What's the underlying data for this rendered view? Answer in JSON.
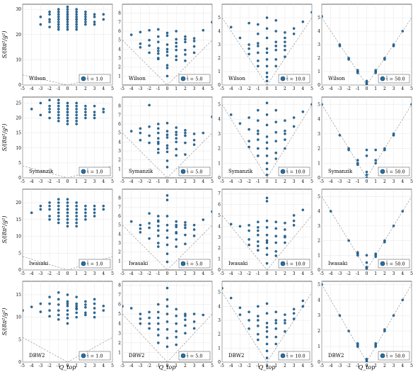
{
  "figure": {
    "xlabel": "Q_top",
    "xticks": [
      -5,
      -4,
      -3,
      -2,
      -1,
      0,
      1,
      2,
      3,
      4,
      5
    ],
    "row_ylabels": [
      "S/(8π²/g²)",
      "S/(8π²/g²)",
      "S/(8π²/g²)",
      "S/(8π²/g²)"
    ],
    "legend_prefix": "t̄ = ",
    "colors": {
      "point": "#2a6fa1",
      "point_edge": "#0d3c61",
      "guide": "#8a8a8a",
      "grid": "#e6e6e6"
    }
  },
  "chart_data": [
    {
      "type": "scatter",
      "action": "Wilson",
      "flow": "1.0",
      "row": 0,
      "col": 0,
      "ylim": [
        0,
        32
      ],
      "yticks": [
        0,
        10,
        20,
        30
      ],
      "kink": 0,
      "slope": 0.8,
      "x": [
        -3,
        -3,
        -2,
        -2,
        -2,
        -2,
        -2,
        -1,
        -1,
        -1,
        -1,
        -1,
        -1,
        -1,
        -1,
        -1,
        0,
        0,
        0,
        0,
        0,
        0,
        0,
        0,
        0,
        0,
        0,
        0,
        1,
        1,
        1,
        1,
        1,
        1,
        1,
        1,
        1,
        1,
        2,
        2,
        2,
        2,
        2,
        2,
        3,
        3,
        3,
        3,
        4,
        4
      ],
      "y": [
        27,
        24,
        29,
        26,
        28,
        25,
        23,
        30,
        27,
        25,
        28,
        24,
        26,
        29,
        23,
        22,
        31,
        28,
        26,
        24,
        27,
        25,
        29,
        23,
        30,
        22,
        26,
        28,
        29,
        26,
        24,
        27,
        25,
        28,
        30,
        23,
        26,
        22,
        28,
        25,
        27,
        24,
        29,
        26,
        28,
        25,
        24,
        27,
        28,
        26
      ]
    },
    {
      "type": "scatter",
      "action": "Wilson",
      "flow": "5.0",
      "row": 0,
      "col": 1,
      "ylim": [
        0,
        9
      ],
      "yticks": [
        1,
        2,
        3,
        4,
        5,
        6,
        7,
        8
      ],
      "kink": 0,
      "slope": 1,
      "x": [
        -4,
        -3,
        -3,
        -3,
        -2,
        -2,
        -2,
        -2,
        -1,
        -1,
        -1,
        -1,
        -1,
        -1,
        -1,
        -1,
        0,
        0,
        0,
        0,
        0,
        0,
        0,
        0,
        0,
        1,
        1,
        1,
        1,
        1,
        1,
        1,
        2,
        2,
        2,
        2,
        2,
        2,
        3,
        3,
        3,
        3,
        4,
        5
      ],
      "y": [
        5.6,
        4.6,
        5.9,
        4.2,
        6.1,
        5.0,
        4.4,
        3.6,
        5.4,
        4.8,
        4.1,
        3.5,
        2.9,
        3.0,
        3.8,
        6.2,
        5.5,
        4.5,
        3.3,
        2.2,
        1.9,
        1.0,
        4.0,
        5.8,
        3.7,
        6.0,
        4.7,
        3.9,
        2.8,
        3.2,
        5.1,
        4.3,
        5.4,
        4.8,
        3.9,
        2.7,
        3.4,
        5.1,
        5.2,
        4.3,
        3.6,
        4.9,
        6.1,
        7.0
      ]
    },
    {
      "type": "scatter",
      "action": "Wilson",
      "flow": "10.0",
      "row": 0,
      "col": 2,
      "ylim": [
        0,
        6
      ],
      "yticks": [
        0,
        1,
        2,
        3,
        4,
        5
      ],
      "kink": 0,
      "slope": 1,
      "x": [
        -4,
        -3,
        -2,
        -2,
        -2,
        -2,
        -1,
        -1,
        -1,
        -1,
        -1,
        -1,
        -1,
        0,
        0,
        0,
        0,
        0,
        0,
        0,
        0,
        0,
        0,
        1,
        1,
        1,
        1,
        1,
        1,
        1,
        2,
        2,
        2,
        2,
        2,
        2,
        3,
        3,
        4,
        5
      ],
      "y": [
        4.3,
        3.5,
        4.6,
        3.0,
        2.3,
        2.7,
        4.5,
        3.8,
        3.1,
        2.4,
        1.8,
        1.4,
        2.9,
        5.0,
        4.2,
        3.5,
        2.7,
        1.9,
        1.4,
        0.9,
        0.6,
        0.3,
        2.4,
        4.8,
        4.0,
        3.2,
        2.6,
        1.9,
        1.4,
        2.9,
        3.9,
        3.2,
        2.6,
        2.1,
        2.9,
        3.5,
        3.8,
        4.2,
        4.7,
        5.4
      ]
    },
    {
      "type": "scatter",
      "action": "Wilson",
      "flow": "50.0",
      "row": 0,
      "col": 3,
      "ylim": [
        0,
        6
      ],
      "yticks": [
        0,
        1,
        2,
        3,
        4,
        5
      ],
      "kink": 0,
      "slope": 1,
      "x": [
        -5,
        -3,
        -3,
        -2,
        -2,
        -1,
        -1,
        -1,
        0,
        0,
        0,
        0,
        1,
        1,
        1,
        2,
        2,
        3,
        3,
        4
      ],
      "y": [
        5.1,
        3.0,
        2.9,
        2.0,
        1.9,
        1.0,
        1.1,
        0.9,
        0.0,
        0.1,
        0.2,
        0.3,
        1.0,
        1.1,
        0.9,
        2.0,
        1.9,
        2.9,
        3.0,
        4.0
      ]
    },
    {
      "type": "scatter",
      "action": "Symanzik",
      "flow": "1.0",
      "row": 1,
      "col": 0,
      "ylim": [
        0,
        27
      ],
      "yticks": [
        0,
        5,
        10,
        15,
        20,
        25
      ],
      "kink": 0,
      "slope": 0.8,
      "x": [
        -4,
        -3,
        -3,
        -2,
        -2,
        -2,
        -2,
        -2,
        -1,
        -1,
        -1,
        -1,
        -1,
        -1,
        -1,
        -1,
        0,
        0,
        0,
        0,
        0,
        0,
        0,
        0,
        0,
        0,
        1,
        1,
        1,
        1,
        1,
        1,
        1,
        1,
        2,
        2,
        2,
        2,
        2,
        3,
        3,
        3,
        3,
        4,
        4
      ],
      "y": [
        23,
        25,
        21,
        24,
        22,
        20,
        26,
        23,
        25,
        23,
        21,
        24,
        22,
        20,
        19,
        26,
        24,
        22,
        21,
        23,
        20,
        25,
        19,
        22,
        18,
        24,
        23,
        21,
        24,
        22,
        20,
        25,
        19,
        18,
        23,
        21,
        22,
        24,
        20,
        22,
        24,
        21,
        20,
        23,
        22
      ]
    },
    {
      "type": "scatter",
      "action": "Symanzik",
      "flow": "5.0",
      "row": 1,
      "col": 1,
      "ylim": [
        0,
        9
      ],
      "yticks": [
        1,
        2,
        3,
        4,
        5,
        6,
        7,
        8
      ],
      "kink": 0,
      "slope": 1,
      "x": [
        -4,
        -3,
        -3,
        -3,
        -2,
        -2,
        -2,
        -2,
        -1,
        -1,
        -1,
        -1,
        -1,
        -1,
        -1,
        -1,
        0,
        0,
        0,
        0,
        0,
        0,
        0,
        0,
        0,
        1,
        1,
        1,
        1,
        1,
        1,
        1,
        2,
        2,
        2,
        2,
        2,
        3,
        3,
        3,
        4,
        5
      ],
      "y": [
        5.2,
        5.5,
        5.0,
        4.2,
        8.1,
        5.7,
        4.7,
        3.9,
        6.0,
        5.0,
        4.4,
        3.8,
        3.2,
        2.8,
        4.0,
        5.5,
        6.1,
        5.2,
        4.5,
        3.6,
        2.9,
        1.9,
        1.2,
        4.8,
        3.3,
        5.6,
        4.8,
        4.0,
        3.2,
        2.5,
        5.1,
        4.4,
        5.3,
        4.7,
        3.9,
        2.6,
        5.0,
        4.2,
        4.9,
        3.7,
        5.0,
        6.8
      ]
    },
    {
      "type": "scatter",
      "action": "Symanzik",
      "flow": "10.0",
      "row": 1,
      "col": 2,
      "ylim": [
        0,
        5.5
      ],
      "yticks": [
        0,
        1,
        2,
        3,
        4,
        5
      ],
      "kink": 0,
      "slope": 1,
      "x": [
        -4,
        -3,
        -2,
        -2,
        -2,
        -2,
        -1,
        -1,
        -1,
        -1,
        -1,
        -1,
        -1,
        0,
        0,
        0,
        0,
        0,
        0,
        0,
        0,
        0,
        0,
        1,
        1,
        1,
        1,
        1,
        1,
        2,
        2,
        2,
        2,
        2,
        3,
        3,
        4,
        5
      ],
      "y": [
        4.3,
        3.7,
        4.1,
        3.3,
        2.5,
        2.1,
        4.6,
        3.9,
        3.2,
        2.6,
        2.0,
        1.5,
        3.0,
        5.1,
        4.3,
        3.6,
        2.8,
        2.0,
        1.5,
        1.0,
        0.6,
        0.2,
        2.4,
        4.6,
        3.8,
        3.1,
        2.5,
        1.7,
        1.3,
        3.9,
        3.2,
        2.6,
        2.0,
        3.0,
        3.5,
        4.1,
        4.5,
        5.0
      ]
    },
    {
      "type": "scatter",
      "action": "Symanzik",
      "flow": "50.0",
      "row": 1,
      "col": 3,
      "ylim": [
        0,
        5.5
      ],
      "yticks": [
        0,
        1,
        2,
        3,
        4,
        5
      ],
      "kink": 0,
      "slope": 1,
      "x": [
        -5,
        -3,
        -2,
        -2,
        -1,
        -1,
        -1,
        0,
        0,
        0,
        0,
        0,
        1,
        1,
        1,
        2,
        2,
        3,
        3,
        5
      ],
      "y": [
        5.0,
        2.9,
        1.9,
        2.0,
        1.0,
        1.2,
        0.9,
        0.0,
        0.2,
        0.4,
        1.5,
        1.9,
        1.0,
        1.2,
        1.9,
        1.9,
        2.0,
        2.9,
        3.0,
        5.0
      ]
    },
    {
      "type": "scatter",
      "action": "Iwasaki",
      "flow": "1.0",
      "row": 2,
      "col": 0,
      "ylim": [
        0,
        24
      ],
      "yticks": [
        0,
        5,
        10,
        15,
        20
      ],
      "kink": 0,
      "slope": 0.8,
      "x": [
        -4,
        -3,
        -3,
        -2,
        -2,
        -2,
        -2,
        -2,
        -1,
        -1,
        -1,
        -1,
        -1,
        -1,
        -1,
        -1,
        0,
        0,
        0,
        0,
        0,
        0,
        0,
        0,
        0,
        0,
        1,
        1,
        1,
        1,
        1,
        1,
        1,
        1,
        2,
        2,
        2,
        2,
        2,
        3,
        3,
        3,
        3,
        4,
        4
      ],
      "y": [
        17,
        19,
        18,
        20,
        18,
        16,
        15,
        19,
        21,
        19,
        17,
        16,
        15,
        14,
        18,
        20,
        21,
        19,
        18,
        17,
        16,
        15,
        14,
        13,
        20,
        18,
        19,
        17,
        16,
        15,
        14,
        13,
        18,
        20,
        19,
        17,
        16,
        15,
        18,
        19,
        17,
        16,
        18,
        18,
        19
      ]
    },
    {
      "type": "scatter",
      "action": "Iwasaki",
      "flow": "5.0",
      "row": 2,
      "col": 1,
      "ylim": [
        0,
        9
      ],
      "yticks": [
        1,
        2,
        3,
        4,
        5,
        6,
        7,
        8
      ],
      "kink": 0,
      "slope": 1,
      "x": [
        -4,
        -3,
        -3,
        -3,
        -2,
        -2,
        -2,
        -2,
        -1,
        -1,
        -1,
        -1,
        -1,
        -1,
        -1,
        -1,
        0,
        0,
        0,
        0,
        0,
        0,
        0,
        0,
        0,
        1,
        1,
        1,
        1,
        1,
        1,
        1,
        2,
        2,
        2,
        2,
        2,
        3,
        3,
        3,
        4,
        5
      ],
      "y": [
        5.4,
        5.0,
        4.6,
        4.2,
        6.3,
        5.2,
        4.7,
        3.5,
        6.0,
        5.4,
        4.4,
        3.8,
        3.0,
        2.6,
        4.9,
        5.5,
        8.3,
        7.8,
        6.0,
        5.0,
        4.4,
        3.6,
        2.8,
        1.8,
        0.9,
        5.4,
        4.8,
        4.1,
        3.4,
        2.6,
        5.0,
        4.2,
        5.3,
        4.7,
        3.9,
        2.9,
        5.0,
        4.5,
        5.0,
        3.8,
        5.6,
        6.5
      ]
    },
    {
      "type": "scatter",
      "action": "Iwasaki",
      "flow": "10.0",
      "row": 2,
      "col": 2,
      "ylim": [
        0,
        7.4
      ],
      "yticks": [
        0,
        1,
        2,
        3,
        4,
        5,
        6,
        7
      ],
      "kink": 0,
      "slope": 1,
      "x": [
        -4,
        -3,
        -2,
        -2,
        -2,
        -2,
        -1,
        -1,
        -1,
        -1,
        -1,
        -1,
        -1,
        0,
        0,
        0,
        0,
        0,
        0,
        0,
        0,
        0,
        0,
        1,
        1,
        1,
        1,
        1,
        1,
        2,
        2,
        2,
        2,
        2,
        3,
        3,
        3,
        4
      ],
      "y": [
        4.2,
        4.0,
        4.1,
        3.6,
        2.8,
        2.3,
        3.9,
        3.2,
        2.6,
        2.2,
        1.8,
        3.6,
        4.4,
        6.6,
        6.3,
        4.5,
        3.9,
        3.2,
        2.7,
        2.0,
        1.4,
        0.6,
        2.5,
        4.4,
        3.8,
        3.1,
        2.5,
        1.7,
        1.3,
        4.3,
        3.7,
        3.1,
        2.5,
        3.0,
        4.5,
        4.1,
        5.0,
        5.5
      ]
    },
    {
      "type": "scatter",
      "action": "Iwasaki",
      "flow": "50.0",
      "row": 2,
      "col": 3,
      "ylim": [
        0,
        5.5
      ],
      "yticks": [
        0,
        1,
        2,
        3,
        4,
        5
      ],
      "kink": 0,
      "slope": 1,
      "x": [
        -4,
        -2,
        -1,
        -1,
        -1,
        0,
        0,
        0,
        0,
        1,
        1,
        1,
        2,
        2,
        3,
        4
      ],
      "y": [
        4.0,
        2.0,
        1.1,
        1.0,
        1.2,
        0.1,
        0.2,
        1.0,
        0.5,
        1.1,
        1.0,
        0.9,
        2.0,
        1.9,
        3.0,
        4.0
      ]
    },
    {
      "type": "scatter",
      "action": "DBW2",
      "flow": "1.0",
      "row": 3,
      "col": 0,
      "ylim": [
        0,
        18
      ],
      "yticks": [
        0,
        5,
        10,
        15
      ],
      "kink": 0,
      "slope": 1.1,
      "x": [
        -5,
        -4,
        -3,
        -3,
        -2,
        -2,
        -2,
        -2,
        -1,
        -1,
        -1,
        -1,
        -1,
        -1,
        0,
        0,
        0,
        0,
        0,
        0,
        0,
        0,
        1,
        1,
        1,
        1,
        1,
        1,
        1,
        2,
        2,
        2,
        2,
        2,
        3,
        3,
        3,
        3,
        3,
        4,
        4
      ],
      "y": [
        11.5,
        12.3,
        13.0,
        11.2,
        14.5,
        13.0,
        11.5,
        10.2,
        15.5,
        14.0,
        12.8,
        11.5,
        10.5,
        9.5,
        15.0,
        13.5,
        12.5,
        11.5,
        10.6,
        9.8,
        8.6,
        13.0,
        14.5,
        13.0,
        12.0,
        11.0,
        10.0,
        12.5,
        11.8,
        13.5,
        12.2,
        11.0,
        10.5,
        12.8,
        14.0,
        13.0,
        12.0,
        11.0,
        10.0,
        12.5,
        11.5
      ]
    },
    {
      "type": "scatter",
      "action": "DBW2",
      "flow": "5.0",
      "row": 3,
      "col": 1,
      "ylim": [
        0,
        8.4
      ],
      "yticks": [
        1,
        2,
        3,
        4,
        5,
        6,
        7,
        8
      ],
      "kink": 0,
      "slope": 1,
      "x": [
        -5,
        -4,
        -3,
        -3,
        -3,
        -2,
        -2,
        -2,
        -2,
        -1,
        -1,
        -1,
        -1,
        -1,
        -1,
        -1,
        0,
        0,
        0,
        0,
        0,
        0,
        0,
        0,
        1,
        1,
        1,
        1,
        1,
        1,
        2,
        2,
        2,
        2,
        2,
        3,
        3,
        3,
        4
      ],
      "y": [
        5.8,
        5.6,
        5.0,
        4.5,
        4.0,
        5.2,
        4.6,
        4.0,
        3.5,
        6.0,
        5.2,
        4.6,
        4.0,
        3.4,
        2.8,
        2.0,
        6.5,
        5.8,
        5.0,
        4.2,
        3.4,
        2.5,
        1.6,
        7.7,
        5.5,
        4.8,
        4.0,
        3.2,
        2.6,
        1.8,
        5.0,
        4.4,
        3.8,
        3.0,
        4.8,
        5.0,
        4.2,
        3.5,
        4.9
      ]
    },
    {
      "type": "scatter",
      "action": "DBW2",
      "flow": "10.0",
      "row": 3,
      "col": 2,
      "ylim": [
        0,
        5.8
      ],
      "yticks": [
        0,
        1,
        2,
        3,
        4,
        5
      ],
      "kink": 0,
      "slope": 1,
      "x": [
        -5,
        -4,
        -3,
        -3,
        -2,
        -2,
        -2,
        -1,
        -1,
        -1,
        -1,
        -1,
        -1,
        0,
        0,
        0,
        0,
        0,
        0,
        0,
        0,
        0,
        1,
        1,
        1,
        1,
        1,
        1,
        2,
        2,
        2,
        2,
        3,
        3,
        3,
        4,
        4
      ],
      "y": [
        5.3,
        4.6,
        3.9,
        3.4,
        3.6,
        3.0,
        2.4,
        4.0,
        3.3,
        2.6,
        2.0,
        1.6,
        3.0,
        4.2,
        3.5,
        2.8,
        2.2,
        1.8,
        1.3,
        0.8,
        0.3,
        2.5,
        3.6,
        3.0,
        2.4,
        1.8,
        1.3,
        2.8,
        3.4,
        2.8,
        2.2,
        3.0,
        3.8,
        3.1,
        3.5,
        4.0,
        4.4
      ]
    },
    {
      "type": "scatter",
      "action": "DBW2",
      "flow": "50.0",
      "row": 3,
      "col": 3,
      "ylim": [
        0,
        5.2
      ],
      "yticks": [
        0,
        1,
        2,
        3,
        4,
        5
      ],
      "kink": 0,
      "slope": 1,
      "x": [
        -5,
        -3,
        -2,
        -1,
        -1,
        -1,
        0,
        0,
        0,
        1,
        1,
        1,
        2,
        2,
        3,
        4
      ],
      "y": [
        5.0,
        3.0,
        2.0,
        1.0,
        1.1,
        1.2,
        0.0,
        0.1,
        0.2,
        1.0,
        1.1,
        1.2,
        2.0,
        2.1,
        3.0,
        4.0
      ]
    }
  ]
}
